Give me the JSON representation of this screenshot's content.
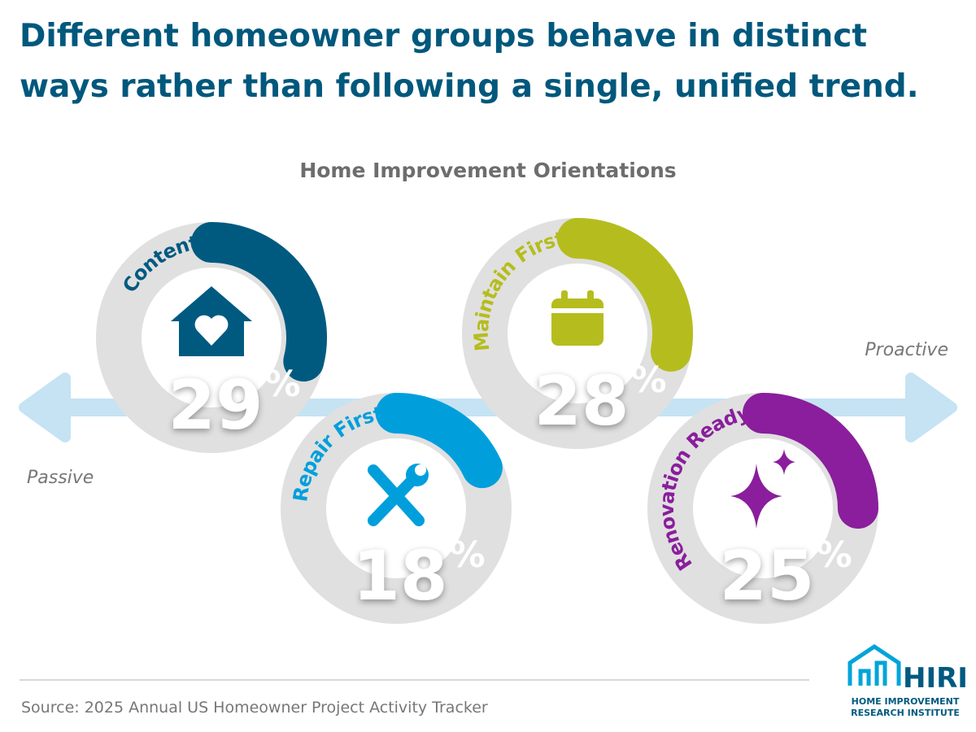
{
  "chart_data": {
    "type": "donut",
    "title_lines": [
      "Different homeowner groups behave in distinct",
      "ways rather than following a single, unified trend."
    ],
    "subtitle": "Home Improvement Orientations",
    "x_label_left": "Passive",
    "x_label_right": "Proactive",
    "categories": [
      "Content",
      "Repair First",
      "Maintain First",
      "Renovation Ready"
    ],
    "values": [
      29,
      18,
      28,
      25
    ],
    "unit": "%",
    "colors": [
      "#005a80",
      "#009fdc",
      "#b5bd1e",
      "#8a1e9c"
    ],
    "source": "Source: 2025 Annual US Homeowner Project Activity Tracker",
    "logo": {
      "name": "HIRI",
      "lines": [
        "HOME IMPROVEMENT",
        "RESEARCH INSTITUTE"
      ]
    }
  }
}
